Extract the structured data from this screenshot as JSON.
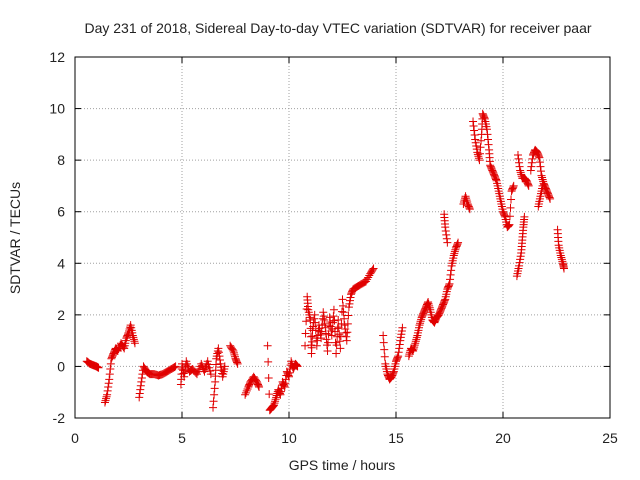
{
  "chart_data": {
    "type": "scatter",
    "title": "Day 231 of 2018, Sidereal Day-to-day VTEC variation (SDTVAR) for receiver paar",
    "xlabel": "GPS time / hours",
    "ylabel": "SDTVAR / TECUs",
    "xlim": [
      0,
      25
    ],
    "ylim": [
      -2,
      12
    ],
    "xticks": [
      "0",
      "5",
      "10",
      "15",
      "20",
      "25"
    ],
    "yticks": [
      "-2",
      "0",
      "2",
      "4",
      "6",
      "8",
      "10",
      "12"
    ],
    "grid": true,
    "marker": "+",
    "color": "#e00000",
    "series": [
      {
        "name": "SDTVAR",
        "segments": [
          [
            [
              0.55,
              0.2
            ],
            [
              0.7,
              0.1
            ],
            [
              0.85,
              0.05
            ],
            [
              1.0,
              0.0
            ],
            [
              1.1,
              -0.05
            ]
          ],
          [
            [
              1.4,
              -1.4
            ],
            [
              1.5,
              -1.1
            ],
            [
              1.6,
              -0.5
            ],
            [
              1.7,
              0.3
            ],
            [
              1.8,
              0.5
            ],
            [
              1.9,
              0.7
            ],
            [
              2.0,
              0.6
            ],
            [
              2.15,
              0.9
            ],
            [
              2.3,
              0.7
            ],
            [
              2.4,
              1.1
            ],
            [
              2.5,
              1.3
            ],
            [
              2.6,
              1.6
            ],
            [
              2.7,
              1.2
            ],
            [
              2.8,
              0.9
            ]
          ],
          [
            [
              3.0,
              -1.2
            ],
            [
              3.1,
              -0.6
            ],
            [
              3.2,
              0.0
            ],
            [
              3.35,
              -0.2
            ],
            [
              3.5,
              -0.3
            ],
            [
              3.7,
              -0.3
            ],
            [
              3.9,
              -0.35
            ],
            [
              4.1,
              -0.3
            ],
            [
              4.3,
              -0.2
            ],
            [
              4.5,
              -0.1
            ],
            [
              4.7,
              0.0
            ]
          ],
          [
            [
              4.95,
              -0.7
            ],
            [
              5.0,
              0.1
            ],
            [
              5.1,
              -0.4
            ],
            [
              5.2,
              0.2
            ],
            [
              5.35,
              -0.2
            ],
            [
              5.5,
              -0.1
            ],
            [
              5.7,
              -0.3
            ],
            [
              5.9,
              0.1
            ],
            [
              6.05,
              -0.2
            ],
            [
              6.2,
              0.2
            ],
            [
              6.35,
              -0.3
            ]
          ],
          [
            [
              6.45,
              -1.6
            ],
            [
              6.55,
              -0.6
            ],
            [
              6.6,
              0.3
            ],
            [
              6.7,
              0.7
            ],
            [
              6.8,
              0.1
            ],
            [
              6.9,
              -0.4
            ],
            [
              7.0,
              0.0
            ]
          ],
          [
            [
              7.25,
              0.8
            ],
            [
              7.4,
              0.6
            ],
            [
              7.5,
              0.3
            ],
            [
              7.6,
              0.1
            ]
          ],
          [
            [
              7.95,
              -1.1
            ],
            [
              8.1,
              -0.8
            ],
            [
              8.2,
              -0.6
            ],
            [
              8.35,
              -0.4
            ],
            [
              8.5,
              -0.6
            ],
            [
              8.6,
              -0.8
            ]
          ],
          [
            [
              9.0,
              0.8
            ],
            [
              9.1,
              -1.7
            ],
            [
              9.2,
              -1.6
            ],
            [
              9.3,
              -1.5
            ],
            [
              9.4,
              -1.2
            ],
            [
              9.5,
              -0.9
            ],
            [
              9.6,
              -1.1
            ],
            [
              9.7,
              -0.6
            ],
            [
              9.8,
              -0.8
            ],
            [
              9.9,
              -0.2
            ],
            [
              10.0,
              -0.4
            ],
            [
              10.1,
              0.2
            ],
            [
              10.2,
              -0.1
            ],
            [
              10.3,
              0.1
            ],
            [
              10.4,
              0.0
            ]
          ],
          [
            [
              10.75,
              0.8
            ],
            [
              10.85,
              2.7
            ],
            [
              10.9,
              2.2
            ],
            [
              11.0,
              1.8
            ],
            [
              11.05,
              0.5
            ],
            [
              11.1,
              1.4
            ],
            [
              11.2,
              2.0
            ],
            [
              11.3,
              0.8
            ],
            [
              11.4,
              1.6
            ],
            [
              11.5,
              1.1
            ],
            [
              11.6,
              2.1
            ],
            [
              11.7,
              1.5
            ],
            [
              11.8,
              0.6
            ],
            [
              11.9,
              1.9
            ],
            [
              12.0,
              1.2
            ],
            [
              12.1,
              2.2
            ],
            [
              12.2,
              0.5
            ],
            [
              12.3,
              1.8
            ],
            [
              12.4,
              0.7
            ],
            [
              12.5,
              2.6
            ],
            [
              12.6,
              1.6
            ],
            [
              12.7,
              1.0
            ],
            [
              12.8,
              2.3
            ],
            [
              12.9,
              2.8
            ],
            [
              13.0,
              3.0
            ],
            [
              13.2,
              3.1
            ],
            [
              13.4,
              3.2
            ],
            [
              13.6,
              3.3
            ],
            [
              13.8,
              3.6
            ],
            [
              13.95,
              3.8
            ]
          ],
          [
            [
              14.4,
              1.2
            ],
            [
              14.5,
              0.1
            ],
            [
              14.6,
              -0.3
            ],
            [
              14.7,
              -0.5
            ],
            [
              14.8,
              -0.4
            ],
            [
              14.9,
              -0.2
            ],
            [
              15.0,
              0.2
            ],
            [
              15.1,
              0.4
            ],
            [
              15.2,
              1.0
            ],
            [
              15.3,
              1.5
            ]
          ],
          [
            [
              15.6,
              0.4
            ],
            [
              15.7,
              0.7
            ],
            [
              15.8,
              0.6
            ],
            [
              15.9,
              0.9
            ],
            [
              16.0,
              1.2
            ],
            [
              16.1,
              1.6
            ],
            [
              16.2,
              1.9
            ],
            [
              16.3,
              2.1
            ],
            [
              16.4,
              2.3
            ],
            [
              16.5,
              2.5
            ],
            [
              16.6,
              2.2
            ],
            [
              16.7,
              1.8
            ],
            [
              16.8,
              1.7
            ],
            [
              16.9,
              1.9
            ],
            [
              17.0,
              2.0
            ],
            [
              17.1,
              2.2
            ],
            [
              17.2,
              2.4
            ],
            [
              17.3,
              2.6
            ],
            [
              17.4,
              3.0
            ],
            [
              17.5,
              3.2
            ],
            [
              17.6,
              3.9
            ],
            [
              17.7,
              4.3
            ],
            [
              17.8,
              4.6
            ],
            [
              17.9,
              4.8
            ]
          ],
          [
            [
              17.25,
              5.9
            ],
            [
              17.3,
              5.4
            ],
            [
              17.4,
              4.8
            ]
          ],
          [
            [
              18.15,
              6.3
            ],
            [
              18.25,
              6.6
            ],
            [
              18.35,
              6.3
            ],
            [
              18.45,
              6.1
            ]
          ],
          [
            [
              18.6,
              9.5
            ],
            [
              18.7,
              8.8
            ],
            [
              18.8,
              8.3
            ],
            [
              18.9,
              8.0
            ],
            [
              19.0,
              9.0
            ],
            [
              19.05,
              9.8
            ],
            [
              19.15,
              9.6
            ],
            [
              19.25,
              9.2
            ],
            [
              19.35,
              8.4
            ],
            [
              19.4,
              7.8
            ],
            [
              19.5,
              7.6
            ],
            [
              19.6,
              7.4
            ],
            [
              19.7,
              7.2
            ],
            [
              19.8,
              6.8
            ],
            [
              19.9,
              6.4
            ],
            [
              20.0,
              6.0
            ],
            [
              20.1,
              5.8
            ],
            [
              20.2,
              5.4
            ],
            [
              20.3,
              5.5
            ],
            [
              20.4,
              6.8
            ],
            [
              20.5,
              7.0
            ]
          ],
          [
            [
              20.65,
              3.5
            ],
            [
              20.75,
              3.9
            ],
            [
              20.85,
              4.4
            ],
            [
              20.9,
              4.9
            ],
            [
              20.95,
              5.4
            ],
            [
              21.0,
              5.8
            ]
          ],
          [
            [
              20.7,
              8.2
            ],
            [
              20.8,
              7.6
            ],
            [
              20.9,
              7.3
            ],
            [
              21.0,
              7.3
            ],
            [
              21.1,
              7.2
            ],
            [
              21.2,
              7.0
            ]
          ],
          [
            [
              21.3,
              7.6
            ],
            [
              21.4,
              8.2
            ],
            [
              21.5,
              8.4
            ],
            [
              21.6,
              8.3
            ],
            [
              21.7,
              8.1
            ],
            [
              21.8,
              7.4
            ],
            [
              21.9,
              7.1
            ],
            [
              22.0,
              6.9
            ],
            [
              22.1,
              6.7
            ],
            [
              22.2,
              6.5
            ]
          ],
          [
            [
              21.65,
              6.2
            ],
            [
              21.75,
              6.6
            ],
            [
              21.85,
              7.0
            ]
          ],
          [
            [
              22.55,
              5.3
            ],
            [
              22.6,
              4.7
            ],
            [
              22.7,
              4.3
            ],
            [
              22.8,
              4.0
            ],
            [
              22.85,
              3.8
            ]
          ]
        ]
      }
    ]
  }
}
